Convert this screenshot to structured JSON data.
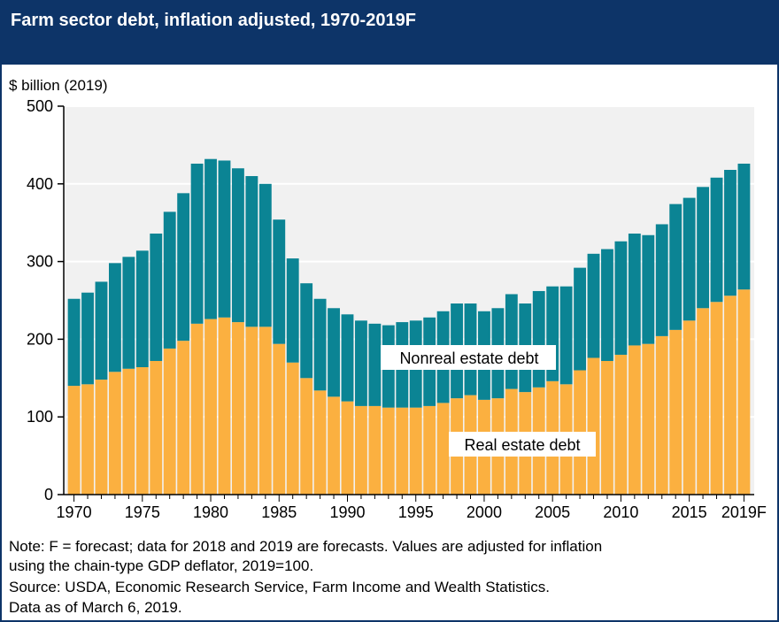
{
  "colors": {
    "header_bg": "#0d3468",
    "plot_bg": "#f1f1f1",
    "real_estate": "#fbb040",
    "nonreal_estate": "#0b8494"
  },
  "notes": {
    "line1": "Note: F = forecast; data for 2018 and 2019 are forecasts. Values are adjusted for inflation",
    "line2": "using the chain-type GDP deflator, 2019=100.",
    "line3": "Source: USDA, Economic Research Service, Farm Income and Wealth Statistics.",
    "line4": "Data as of March 6, 2019."
  },
  "chart_data": {
    "type": "bar",
    "stacked": true,
    "title": "Farm sector debt, inflation adjusted, 1970-2019F",
    "ylabel": "$ billion (2019)",
    "xlabel": "",
    "ylim": [
      0,
      500
    ],
    "yticks": [
      "0",
      "100",
      "200",
      "300",
      "400",
      "500"
    ],
    "xtick_labels": [
      "1970",
      "1975",
      "1980",
      "1985",
      "1990",
      "1995",
      "2000",
      "2005",
      "2010",
      "2015",
      "2019F"
    ],
    "categories": [
      1970,
      1971,
      1972,
      1973,
      1974,
      1975,
      1976,
      1977,
      1978,
      1979,
      1980,
      1981,
      1982,
      1983,
      1984,
      1985,
      1986,
      1987,
      1988,
      1989,
      1990,
      1991,
      1992,
      1993,
      1994,
      1995,
      1996,
      1997,
      1998,
      1999,
      2000,
      2001,
      2002,
      2003,
      2004,
      2005,
      2006,
      2007,
      2008,
      2009,
      2010,
      2011,
      2012,
      2013,
      2014,
      2015,
      2016,
      2017,
      2018,
      2019
    ],
    "series": [
      {
        "name": "Real estate debt",
        "values": [
          140,
          142,
          148,
          158,
          162,
          164,
          172,
          188,
          198,
          220,
          226,
          228,
          222,
          216,
          216,
          194,
          170,
          150,
          134,
          126,
          120,
          114,
          114,
          112,
          112,
          112,
          114,
          118,
          124,
          128,
          122,
          124,
          136,
          132,
          138,
          146,
          142,
          160,
          176,
          172,
          180,
          192,
          194,
          204,
          212,
          224,
          240,
          248,
          256,
          264
        ]
      },
      {
        "name": "Nonreal estate debt",
        "values": [
          112,
          118,
          126,
          140,
          144,
          150,
          164,
          176,
          190,
          206,
          206,
          202,
          198,
          194,
          184,
          160,
          134,
          122,
          118,
          114,
          112,
          110,
          106,
          106,
          110,
          112,
          114,
          118,
          122,
          118,
          114,
          116,
          122,
          114,
          124,
          122,
          126,
          132,
          134,
          144,
          146,
          144,
          140,
          144,
          162,
          158,
          156,
          160,
          162,
          162
        ]
      }
    ],
    "annotations": [
      "Nonreal estate debt",
      "Real estate debt"
    ]
  }
}
